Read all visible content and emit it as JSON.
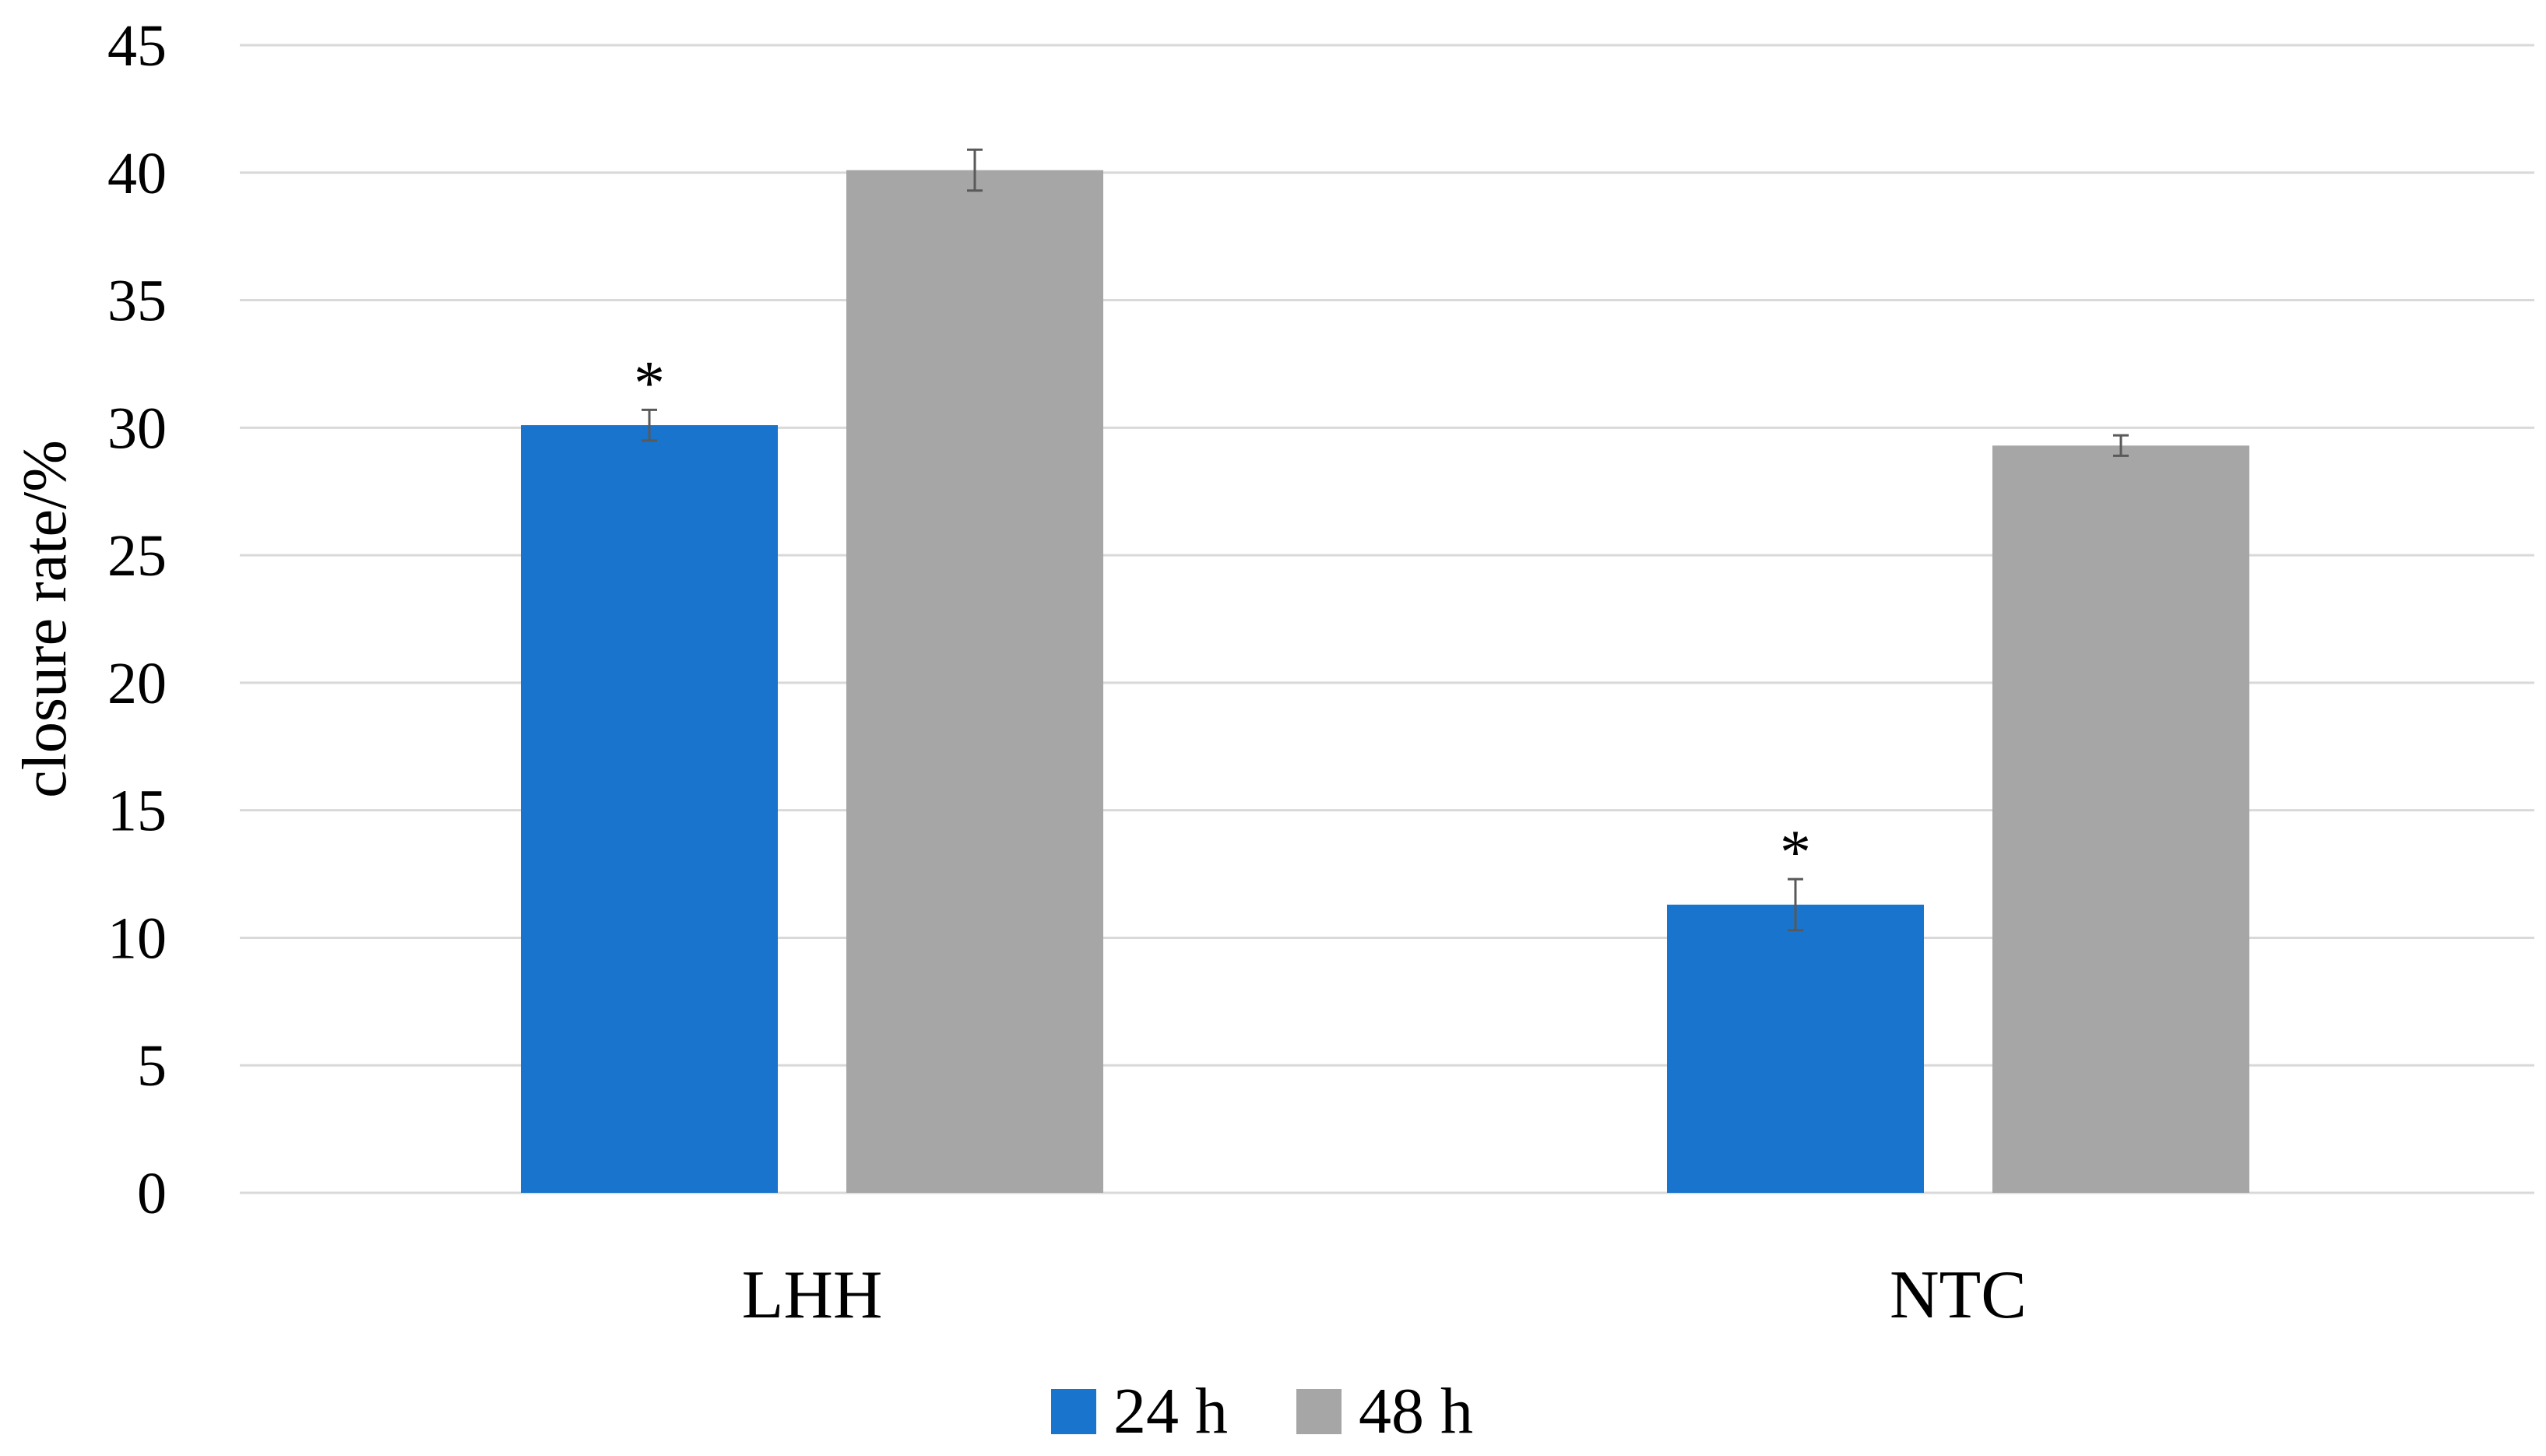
{
  "chart_data": {
    "type": "bar",
    "categories": [
      "LHH",
      "NTC"
    ],
    "series": [
      {
        "name": "24 h",
        "values": [
          30.1,
          11.3
        ],
        "errors": [
          0.6,
          1.0
        ],
        "color": "#1874cd"
      },
      {
        "name": "48 h",
        "values": [
          40.1,
          29.3
        ],
        "errors": [
          0.8,
          0.4
        ],
        "color": "#a6a6a6"
      }
    ],
    "significance": [
      [
        "*",
        ""
      ],
      [
        "*",
        ""
      ]
    ],
    "ylabel": "closure rate/%",
    "xlabel": "",
    "ylim": [
      0,
      45
    ],
    "yticks": [
      0,
      5,
      10,
      15,
      20,
      25,
      30,
      35,
      40,
      45
    ],
    "grid": true,
    "legend_position": "bottom-center"
  }
}
